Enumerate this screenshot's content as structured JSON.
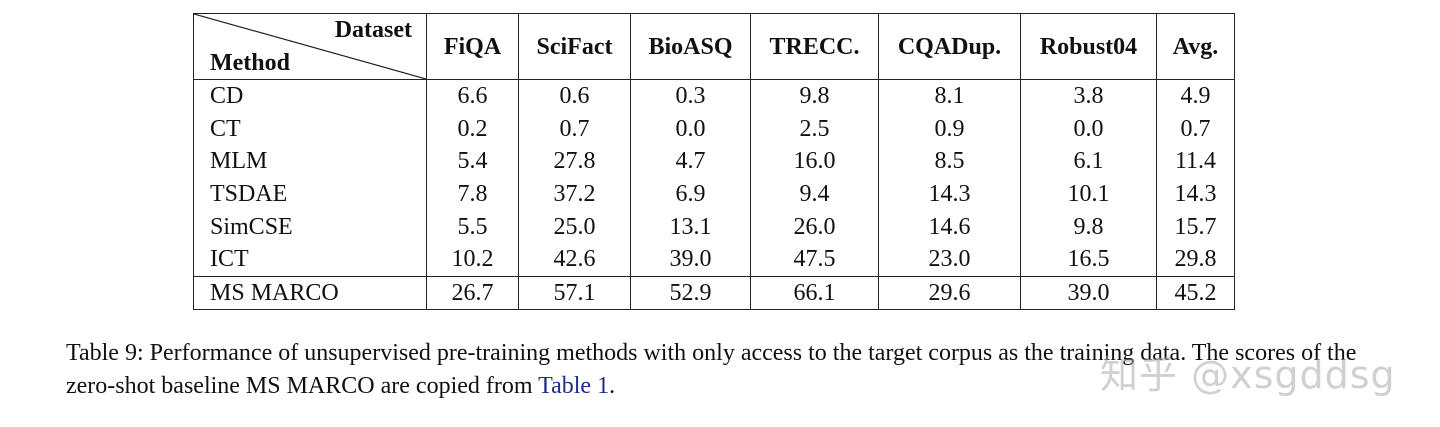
{
  "table": {
    "corner_top": "Dataset",
    "corner_bottom": "Method",
    "columns": [
      "FiQA",
      "SciFact",
      "BioASQ",
      "TRECC.",
      "CQADup.",
      "Robust04",
      "Avg."
    ],
    "rows": [
      {
        "method": "CD",
        "values": [
          "6.6",
          "0.6",
          "0.3",
          "9.8",
          "8.1",
          "3.8",
          "4.9"
        ]
      },
      {
        "method": "CT",
        "values": [
          "0.2",
          "0.7",
          "0.0",
          "2.5",
          "0.9",
          "0.0",
          "0.7"
        ]
      },
      {
        "method": "MLM",
        "values": [
          "5.4",
          "27.8",
          "4.7",
          "16.0",
          "8.5",
          "6.1",
          "11.4"
        ]
      },
      {
        "method": "TSDAE",
        "values": [
          "7.8",
          "37.2",
          "6.9",
          "9.4",
          "14.3",
          "10.1",
          "14.3"
        ]
      },
      {
        "method": "SimCSE",
        "values": [
          "5.5",
          "25.0",
          "13.1",
          "26.0",
          "14.6",
          "9.8",
          "15.7"
        ]
      },
      {
        "method": "ICT",
        "values": [
          "10.2",
          "42.6",
          "39.0",
          "47.5",
          "23.0",
          "16.5",
          "29.8"
        ]
      },
      {
        "method": "MS MARCO",
        "values": [
          "26.7",
          "57.1",
          "52.9",
          "66.1",
          "29.6",
          "39.0",
          "45.2"
        ]
      }
    ]
  },
  "caption": {
    "part1": "Table 9: Performance of unsupervised pre-training methods with only access to the target corpus as the training data. The scores of the zero-shot baseline MS MARCO are copied from ",
    "link": "Table 1",
    "part2": "."
  },
  "watermark": "知乎 @xsgddsg",
  "colors": {
    "link": "#1f2a8c",
    "text": "#111111",
    "rule": "#222222"
  }
}
